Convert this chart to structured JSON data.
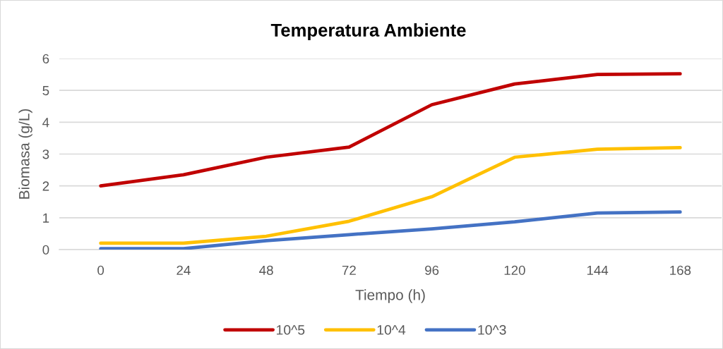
{
  "chart_data": {
    "type": "line",
    "title": "Temperatura Ambiente",
    "xlabel": "Tiempo (h)",
    "ylabel": "Biomasa (g/L)",
    "categories": [
      "0",
      "24",
      "48",
      "72",
      "96",
      "120",
      "144",
      "168"
    ],
    "series": [
      {
        "name": "10^5",
        "color": "#c00000",
        "values": [
          2.0,
          2.35,
          2.9,
          3.22,
          4.55,
          5.2,
          5.5,
          5.52
        ]
      },
      {
        "name": "10^4",
        "color": "#ffc000",
        "values": [
          0.2,
          0.2,
          0.42,
          0.89,
          1.66,
          2.9,
          3.15,
          3.2
        ]
      },
      {
        "name": "10^3",
        "color": "#4472c4",
        "values": [
          0.03,
          0.03,
          0.28,
          0.47,
          0.65,
          0.87,
          1.15,
          1.18
        ]
      }
    ],
    "ylim": [
      0,
      6
    ],
    "yticks": [
      0,
      1,
      2,
      3,
      4,
      5,
      6
    ],
    "grid": "y",
    "legend": "bottom",
    "marker": "none",
    "line_style": "solid"
  }
}
